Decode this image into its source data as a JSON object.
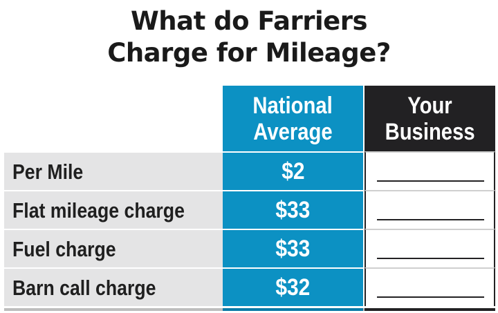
{
  "title": {
    "line1": "What do Farriers",
    "line2": "Charge for Mileage?"
  },
  "colors": {
    "national_average_column": "#0c91c3",
    "your_business_column": "#222123",
    "label_column": "#e4e4e5",
    "text": "#1f1f1f"
  },
  "chart_data": {
    "type": "table",
    "title": "What do Farriers Charge for Mileage?",
    "columns": [
      {
        "line1": "National",
        "line2": "Average"
      },
      {
        "line1": "Your",
        "line2": "Business"
      }
    ],
    "rows": [
      {
        "label": "Per Mile",
        "national_average": "$2",
        "your_business": ""
      },
      {
        "label": "Flat mileage charge",
        "national_average": "$33",
        "your_business": ""
      },
      {
        "label": "Fuel charge",
        "national_average": "$33",
        "your_business": ""
      },
      {
        "label": "Barn call charge",
        "national_average": "$32",
        "your_business": ""
      }
    ]
  }
}
